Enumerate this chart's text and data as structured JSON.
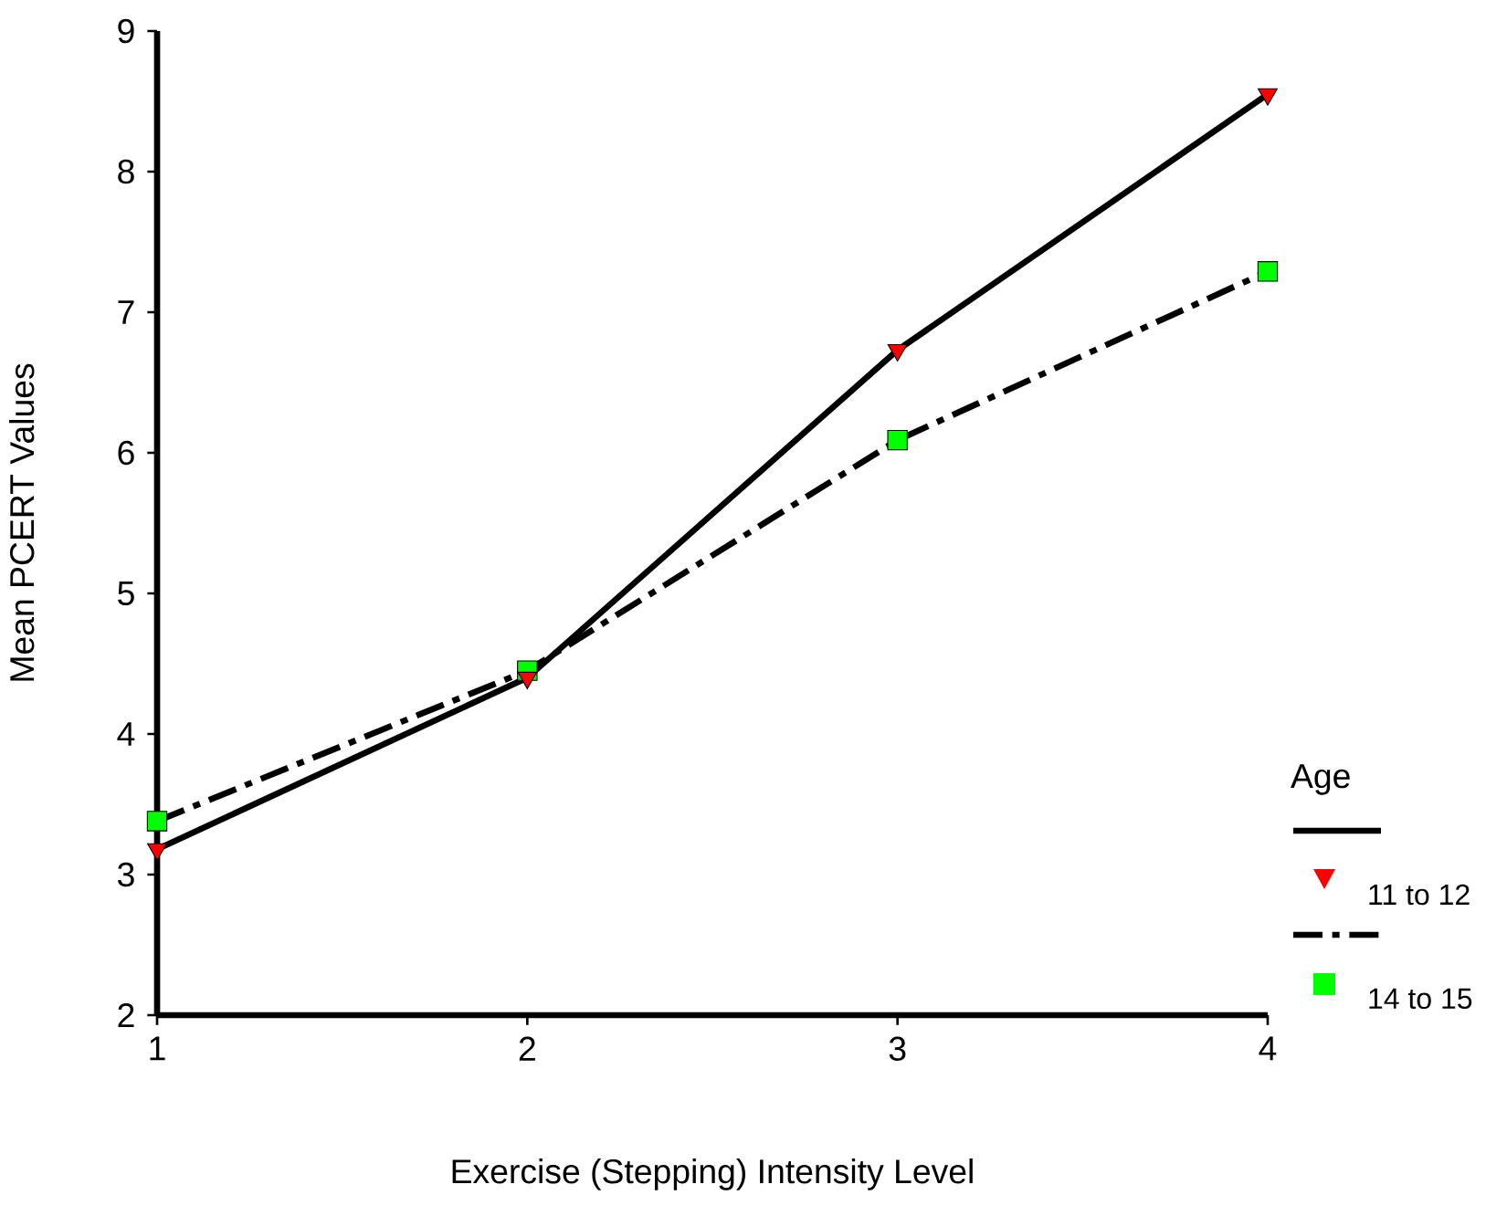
{
  "chart_data": {
    "type": "line",
    "xlabel": "Exercise (Stepping) Intensity Level",
    "ylabel": "Mean PCERT Values",
    "legend_title": "Age",
    "x": [
      1,
      2,
      3,
      4
    ],
    "xlim": [
      1,
      4
    ],
    "xticks": [
      1,
      2,
      3,
      4
    ],
    "ylim": [
      2,
      9
    ],
    "yticks": [
      2,
      3,
      4,
      5,
      6,
      7,
      8,
      9
    ],
    "grid": false,
    "legend": "bottom right",
    "series": [
      {
        "name": "11 to 12",
        "color": "#ff0000",
        "marker": "triangle",
        "line_style": "solid",
        "values": [
          3.18,
          4.4,
          6.73,
          8.55
        ]
      },
      {
        "name": "14 to 15",
        "color": "#00ff00",
        "marker": "square",
        "line_style": "dashdot",
        "values": [
          3.38,
          4.45,
          6.09,
          7.29
        ]
      }
    ]
  }
}
